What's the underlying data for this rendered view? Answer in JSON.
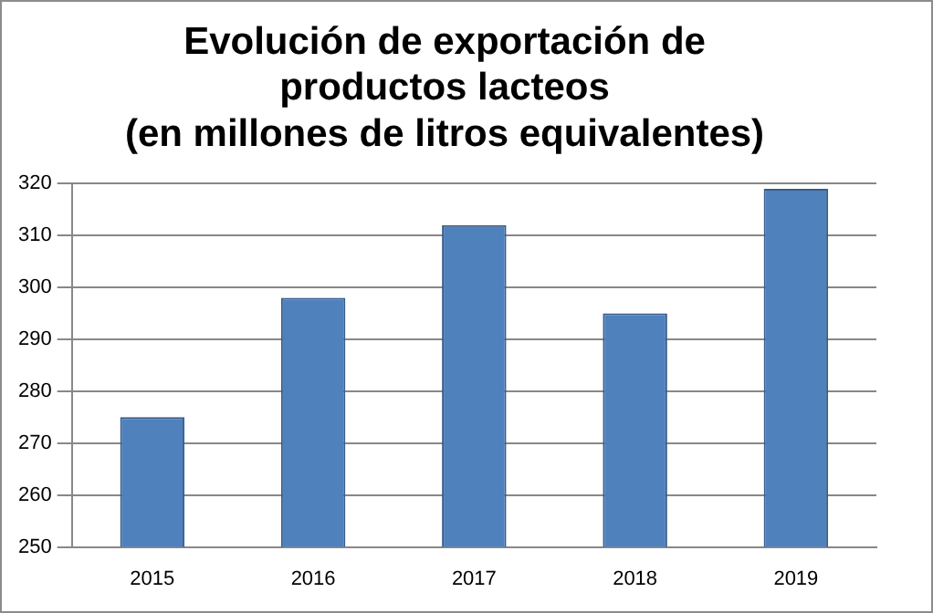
{
  "chart_data": {
    "type": "bar",
    "title": "Evolución de exportación de\nproductos lacteos\n(en millones de litros equivalentes)",
    "categories": [
      "2015",
      "2016",
      "2017",
      "2018",
      "2019"
    ],
    "values": [
      275,
      298,
      312,
      295,
      319
    ],
    "color": "#4f81bd",
    "ylim": [
      250,
      320
    ],
    "yticks": [
      250,
      260,
      270,
      280,
      290,
      300,
      310,
      320
    ],
    "grid": "y",
    "legend": false
  }
}
